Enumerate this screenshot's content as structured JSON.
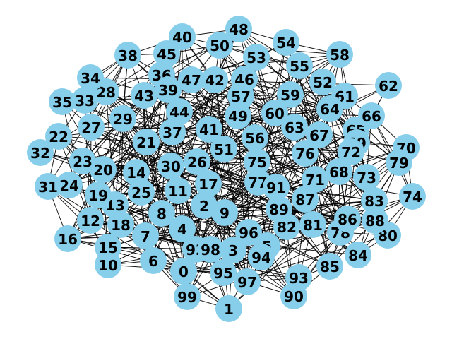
{
  "graph": {
    "node_color": "#87ceeb",
    "edge_color": "#000000",
    "label_color": "#000000",
    "nodes": [
      "0",
      "1",
      "2",
      "3",
      "4",
      "5",
      "6",
      "7",
      "8",
      "9",
      "10",
      "11",
      "12",
      "13",
      "14",
      "15",
      "16",
      "17",
      "18",
      "19",
      "20",
      "21",
      "22",
      "23",
      "24",
      "25",
      "26",
      "27",
      "28",
      "29",
      "30",
      "31",
      "32",
      "33",
      "34",
      "35",
      "36",
      "37",
      "38",
      "39",
      "40",
      "41",
      "42",
      "43",
      "44",
      "45",
      "46",
      "47",
      "48",
      "49",
      "50",
      "51",
      "52",
      "53",
      "54",
      "55",
      "56",
      "57",
      "58",
      "59",
      "60",
      "61",
      "62",
      "63",
      "64",
      "65",
      "66",
      "67",
      "68",
      "69",
      "70",
      "71",
      "72",
      "73",
      "74",
      "75",
      "76",
      "77",
      "78",
      "79",
      "80",
      "81",
      "82",
      "83",
      "84",
      "85",
      "86",
      "87",
      "88",
      "89",
      "90",
      "91",
      "92",
      "93",
      "94",
      "95",
      "96",
      "97",
      "98",
      "99"
    ]
  }
}
